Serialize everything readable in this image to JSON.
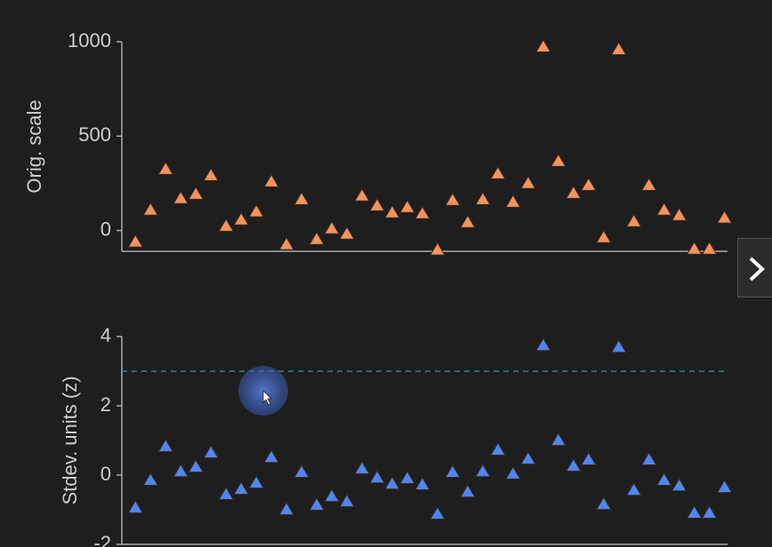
{
  "chart_data": [
    {
      "type": "scatter",
      "y_label": "Orig. scale",
      "color": "#f4935c",
      "x": [
        1,
        2,
        3,
        4,
        5,
        6,
        7,
        8,
        9,
        10,
        11,
        12,
        13,
        14,
        15,
        16,
        17,
        18,
        19,
        20,
        21,
        22,
        23,
        24,
        25,
        26,
        27,
        28,
        29,
        30,
        31,
        32,
        33,
        34,
        35,
        36,
        37,
        38,
        39,
        40
      ],
      "values": [
        -61,
        108,
        324,
        169,
        192,
        291,
        23,
        56,
        99,
        258,
        -75,
        164,
        -47,
        9,
        -19,
        183,
        131,
        94,
        122,
        89,
        -103,
        160,
        42,
        164,
        300,
        150,
        249,
        972,
        366,
        197,
        239,
        -38,
        958,
        47,
        239,
        108,
        80,
        -99,
        -99,
        66
      ],
      "xlim": [
        0.1,
        40.2
      ],
      "ylim": [
        -110,
        1000
      ],
      "yticks": [
        0,
        500,
        1000
      ]
    },
    {
      "type": "scatter",
      "y_label": "Stdev. units (z)",
      "color": "#4f86f0",
      "x": [
        1,
        2,
        3,
        4,
        5,
        6,
        7,
        8,
        9,
        10,
        11,
        12,
        13,
        14,
        15,
        16,
        17,
        18,
        19,
        20,
        21,
        22,
        23,
        24,
        25,
        26,
        27,
        28,
        29,
        30,
        31,
        32,
        33,
        34,
        35,
        36,
        37,
        38,
        39,
        40
      ],
      "values": [
        -0.95,
        -0.15,
        0.82,
        0.1,
        0.23,
        0.64,
        -0.56,
        -0.41,
        -0.23,
        0.51,
        -1.0,
        0.08,
        -0.87,
        -0.62,
        -0.77,
        0.18,
        -0.08,
        -0.26,
        -0.1,
        -0.28,
        -1.13,
        0.08,
        -0.49,
        0.1,
        0.72,
        0.03,
        0.46,
        3.74,
        1.0,
        0.26,
        0.44,
        -0.85,
        3.69,
        -0.44,
        0.44,
        -0.15,
        -0.31,
        -1.1,
        -1.1,
        -0.36
      ],
      "xlim": [
        0.1,
        40.2
      ],
      "ylim": [
        -2,
        4
      ],
      "yticks": [
        -2,
        0,
        2,
        4
      ],
      "hline": 3,
      "hline_color": "#3f7f8f"
    }
  ]
}
